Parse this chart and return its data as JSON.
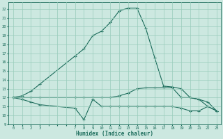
{
  "xlabel": "Humidex (Indice chaleur)",
  "bg_color": "#cce8e0",
  "grid_color": "#99ccbb",
  "line_color": "#1a6b5a",
  "xlim": [
    -0.5,
    23.5
  ],
  "ylim": [
    9,
    22.8
  ],
  "xtick_labels": [
    "0",
    "1",
    "2",
    "3",
    "",
    "",
    "",
    "7",
    "8",
    "9",
    "10",
    "11",
    "12",
    "13",
    "14",
    "15",
    "16",
    "17",
    "18",
    "19",
    "20",
    "21",
    "22",
    "23"
  ],
  "ytick_labels": [
    "9",
    "10",
    "11",
    "12",
    "13",
    "14",
    "15",
    "16",
    "17",
    "18",
    "19",
    "20",
    "21",
    "22"
  ],
  "ytick_vals": [
    9,
    10,
    11,
    12,
    13,
    14,
    15,
    16,
    17,
    18,
    19,
    20,
    21,
    22
  ],
  "line1_x": [
    0,
    1,
    2,
    3,
    7,
    8,
    9,
    10,
    11,
    12,
    13,
    14,
    15,
    16,
    17,
    18,
    19,
    20,
    21,
    22,
    23
  ],
  "line1_y": [
    12.0,
    12.2,
    12.7,
    13.5,
    16.7,
    17.5,
    19.0,
    19.5,
    20.5,
    21.8,
    22.1,
    22.1,
    19.8,
    16.5,
    13.3,
    13.2,
    13.0,
    12.0,
    11.8,
    11.0,
    10.5
  ],
  "line2_x": [
    0,
    1,
    2,
    3,
    7,
    8,
    9,
    10,
    11,
    12,
    13,
    14,
    15,
    16,
    17,
    18,
    19,
    20,
    21,
    22,
    23
  ],
  "line2_y": [
    12.0,
    12.0,
    12.0,
    12.0,
    12.0,
    12.0,
    12.0,
    12.0,
    12.0,
    12.2,
    12.5,
    13.0,
    13.1,
    13.1,
    13.1,
    13.1,
    12.0,
    12.0,
    11.8,
    11.5,
    10.5
  ],
  "line3_x": [
    0,
    1,
    2,
    3,
    7,
    8,
    9,
    10,
    11,
    12,
    13,
    14,
    15,
    16,
    17,
    18,
    19,
    20,
    21,
    22,
    23
  ],
  "line3_y": [
    12.0,
    11.8,
    11.5,
    11.2,
    10.8,
    9.5,
    11.8,
    11.0,
    11.0,
    11.0,
    11.0,
    11.0,
    11.0,
    11.0,
    11.0,
    11.0,
    10.8,
    10.5,
    10.5,
    11.0,
    10.5
  ]
}
